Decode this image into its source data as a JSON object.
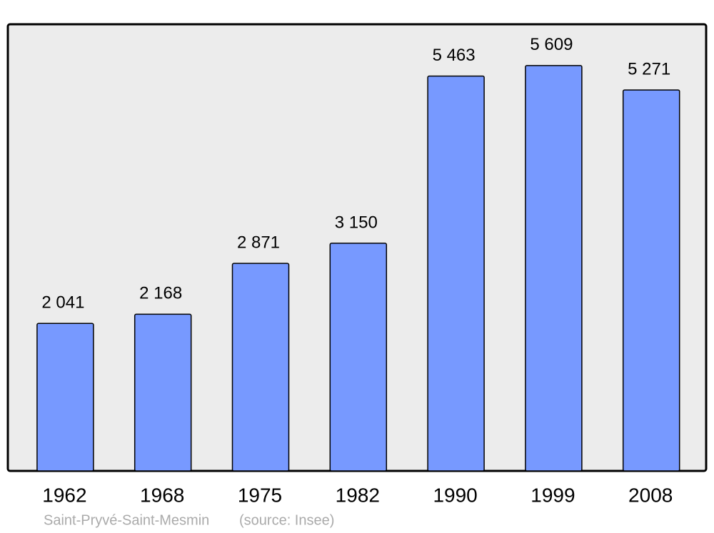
{
  "chart_data": {
    "type": "bar",
    "categories": [
      "1962",
      "1968",
      "1975",
      "1982",
      "1990",
      "1999",
      "2008"
    ],
    "values": [
      2041,
      2168,
      2871,
      3150,
      5463,
      5609,
      5271
    ],
    "value_labels": [
      "2 041",
      "2 168",
      "2 871",
      "3 150",
      "5 463",
      "5 609",
      "5 271"
    ],
    "color": "#7799ff",
    "ylim": [
      0,
      6180
    ],
    "caption": "Saint-Pryvé-Saint-Mesmin",
    "source": "(source: Insee)"
  }
}
